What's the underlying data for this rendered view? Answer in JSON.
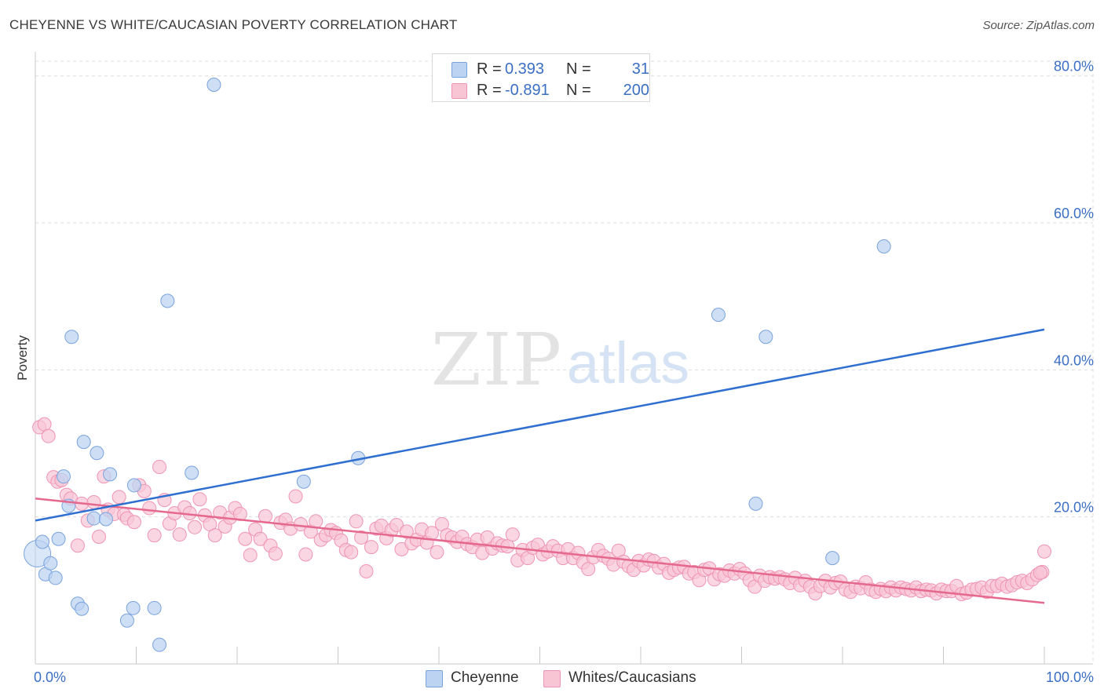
{
  "title": "CHEYENNE VS WHITE/CAUCASIAN POVERTY CORRELATION CHART",
  "source": "Source: ZipAtlas.com",
  "watermark": {
    "zip": "ZIP",
    "atlas": "atlas"
  },
  "legend_stats": [
    {
      "r_label": "R =",
      "r_value": "0.393",
      "n_label": "N =",
      "n_value": "31"
    },
    {
      "r_label": "R =",
      "r_value": "-0.891",
      "n_label": "N =",
      "n_value": "200"
    }
  ],
  "colors": {
    "cheyenne_fill": "#bcd3f2",
    "cheyenne_stroke": "#7aa3dd",
    "cheyenne_line": "#2f6fd0",
    "white_fill": "#f8c5d5",
    "white_stroke": "#ef94b3",
    "white_line": "#e5698f",
    "tick_label": "#3b6fc4",
    "grid": "#dddddd"
  },
  "chart_data": {
    "type": "scatter",
    "title": "CHEYENNE VS WHITE/CAUCASIAN POVERTY CORRELATION CHART",
    "xlabel": "",
    "ylabel": "Poverty",
    "xlim": [
      0,
      100
    ],
    "ylim": [
      0,
      82
    ],
    "x_tick_labels": [
      "0.0%",
      "100.0%"
    ],
    "y_ticks": [
      20,
      40,
      60,
      80
    ],
    "y_tick_labels": [
      "20.0%",
      "40.0%",
      "60.0%",
      "80.0%"
    ],
    "grid": true,
    "legend_position": "bottom",
    "series": [
      {
        "name": "Cheyenne",
        "r": 0.393,
        "n": 31,
        "trend": {
          "x": [
            0,
            100
          ],
          "y": [
            19.5,
            45.5
          ]
        },
        "points": [
          [
            0.2,
            15.0
          ],
          [
            0.7,
            16.6
          ],
          [
            1.0,
            12.2
          ],
          [
            1.5,
            13.7
          ],
          [
            2.0,
            11.7
          ],
          [
            2.3,
            17.0
          ],
          [
            2.8,
            25.5
          ],
          [
            3.3,
            21.5
          ],
          [
            3.6,
            44.5
          ],
          [
            4.2,
            8.2
          ],
          [
            4.6,
            7.5
          ],
          [
            4.8,
            30.2
          ],
          [
            5.8,
            19.8
          ],
          [
            6.1,
            28.7
          ],
          [
            7.0,
            19.7
          ],
          [
            7.4,
            25.8
          ],
          [
            9.1,
            5.9
          ],
          [
            9.7,
            7.6
          ],
          [
            9.8,
            24.3
          ],
          [
            11.8,
            7.6
          ],
          [
            12.3,
            2.6
          ],
          [
            13.1,
            49.4
          ],
          [
            15.5,
            26.0
          ],
          [
            17.7,
            78.8
          ],
          [
            26.6,
            24.8
          ],
          [
            32.0,
            28.0
          ],
          [
            67.7,
            47.5
          ],
          [
            71.4,
            21.8
          ],
          [
            72.4,
            44.5
          ],
          [
            79.0,
            14.4
          ],
          [
            84.1,
            56.8
          ]
        ]
      },
      {
        "name": "Whites/Caucasians",
        "r": -0.891,
        "n": 200,
        "trend": {
          "x": [
            0,
            100
          ],
          "y": [
            22.5,
            8.3
          ]
        },
        "points": [
          [
            0.4,
            32.2
          ],
          [
            0.9,
            32.6
          ],
          [
            1.3,
            31.0
          ],
          [
            1.8,
            25.4
          ],
          [
            2.2,
            24.8
          ],
          [
            2.6,
            25.0
          ],
          [
            3.1,
            23.0
          ],
          [
            3.5,
            22.5
          ],
          [
            4.2,
            16.1
          ],
          [
            4.6,
            21.8
          ],
          [
            5.2,
            19.5
          ],
          [
            5.8,
            22.0
          ],
          [
            6.3,
            17.3
          ],
          [
            6.8,
            25.5
          ],
          [
            7.2,
            21.0
          ],
          [
            7.8,
            20.4
          ],
          [
            8.3,
            22.7
          ],
          [
            8.8,
            20.3
          ],
          [
            9.1,
            19.8
          ],
          [
            9.8,
            19.3
          ],
          [
            10.3,
            24.3
          ],
          [
            10.8,
            23.5
          ],
          [
            11.3,
            21.2
          ],
          [
            11.8,
            17.5
          ],
          [
            12.3,
            26.8
          ],
          [
            12.8,
            22.3
          ],
          [
            13.3,
            19.1
          ],
          [
            13.8,
            20.5
          ],
          [
            14.3,
            17.6
          ],
          [
            14.8,
            21.3
          ],
          [
            15.3,
            20.5
          ],
          [
            15.8,
            18.6
          ],
          [
            16.3,
            22.4
          ],
          [
            16.8,
            20.2
          ],
          [
            17.3,
            19.0
          ],
          [
            17.8,
            17.5
          ],
          [
            18.3,
            20.6
          ],
          [
            18.8,
            18.7
          ],
          [
            19.3,
            19.9
          ],
          [
            19.8,
            21.2
          ],
          [
            20.3,
            20.4
          ],
          [
            20.8,
            17.0
          ],
          [
            21.3,
            14.8
          ],
          [
            21.8,
            18.3
          ],
          [
            22.3,
            17.0
          ],
          [
            22.8,
            20.1
          ],
          [
            23.3,
            16.1
          ],
          [
            23.8,
            15.0
          ],
          [
            24.3,
            19.2
          ],
          [
            24.8,
            19.6
          ],
          [
            25.3,
            18.4
          ],
          [
            25.8,
            22.8
          ],
          [
            26.3,
            19.0
          ],
          [
            26.8,
            14.9
          ],
          [
            27.3,
            18.0
          ],
          [
            27.8,
            19.4
          ],
          [
            28.3,
            16.9
          ],
          [
            28.8,
            17.5
          ],
          [
            29.3,
            18.2
          ],
          [
            29.8,
            17.8
          ],
          [
            30.3,
            16.8
          ],
          [
            30.8,
            15.5
          ],
          [
            31.3,
            15.2
          ],
          [
            31.8,
            19.4
          ],
          [
            32.3,
            17.2
          ],
          [
            32.8,
            12.6
          ],
          [
            33.3,
            15.9
          ],
          [
            33.8,
            18.4
          ],
          [
            34.3,
            18.8
          ],
          [
            34.8,
            17.1
          ],
          [
            35.3,
            18.2
          ],
          [
            35.8,
            18.9
          ],
          [
            36.3,
            15.6
          ],
          [
            36.8,
            18.0
          ],
          [
            37.3,
            16.4
          ],
          [
            37.8,
            16.9
          ],
          [
            38.3,
            18.3
          ],
          [
            38.8,
            16.5
          ],
          [
            39.3,
            17.8
          ],
          [
            39.8,
            15.2
          ],
          [
            40.3,
            19.0
          ],
          [
            40.8,
            17.5
          ],
          [
            41.3,
            17.2
          ],
          [
            41.8,
            16.6
          ],
          [
            42.3,
            17.3
          ],
          [
            42.8,
            16.3
          ],
          [
            43.3,
            15.9
          ],
          [
            43.8,
            16.9
          ],
          [
            44.3,
            15.1
          ],
          [
            44.8,
            17.2
          ],
          [
            45.3,
            15.7
          ],
          [
            45.8,
            16.4
          ],
          [
            46.3,
            16.1
          ],
          [
            46.8,
            16.0
          ],
          [
            47.3,
            17.6
          ],
          [
            47.8,
            14.1
          ],
          [
            48.3,
            15.5
          ],
          [
            48.8,
            14.4
          ],
          [
            49.3,
            15.8
          ],
          [
            49.8,
            16.2
          ],
          [
            50.3,
            14.9
          ],
          [
            50.8,
            15.3
          ],
          [
            51.3,
            16.0
          ],
          [
            51.8,
            15.4
          ],
          [
            52.3,
            14.4
          ],
          [
            52.8,
            15.6
          ],
          [
            53.3,
            14.4
          ],
          [
            53.8,
            15.1
          ],
          [
            54.3,
            13.8
          ],
          [
            54.8,
            12.9
          ],
          [
            55.3,
            14.5
          ],
          [
            55.8,
            15.5
          ],
          [
            56.3,
            14.7
          ],
          [
            56.8,
            14.3
          ],
          [
            57.3,
            13.5
          ],
          [
            57.8,
            15.4
          ],
          [
            58.3,
            13.9
          ],
          [
            58.8,
            13.3
          ],
          [
            59.3,
            12.8
          ],
          [
            59.8,
            14.0
          ],
          [
            60.3,
            13.4
          ],
          [
            60.8,
            14.2
          ],
          [
            61.3,
            14.0
          ],
          [
            61.8,
            13.1
          ],
          [
            62.3,
            13.6
          ],
          [
            62.8,
            12.4
          ],
          [
            63.3,
            12.8
          ],
          [
            63.8,
            13.1
          ],
          [
            64.3,
            13.2
          ],
          [
            64.8,
            12.3
          ],
          [
            65.3,
            12.5
          ],
          [
            65.8,
            11.4
          ],
          [
            66.3,
            12.8
          ],
          [
            66.8,
            13.0
          ],
          [
            67.3,
            11.5
          ],
          [
            67.8,
            12.2
          ],
          [
            68.3,
            12.0
          ],
          [
            68.8,
            12.7
          ],
          [
            69.3,
            12.3
          ],
          [
            69.8,
            12.9
          ],
          [
            70.3,
            12.3
          ],
          [
            70.8,
            11.4
          ],
          [
            71.3,
            10.5
          ],
          [
            71.8,
            12.0
          ],
          [
            72.3,
            11.3
          ],
          [
            72.8,
            11.8
          ],
          [
            73.3,
            11.6
          ],
          [
            73.8,
            11.8
          ],
          [
            74.3,
            11.5
          ],
          [
            74.8,
            11.0
          ],
          [
            75.3,
            11.7
          ],
          [
            75.8,
            10.7
          ],
          [
            76.3,
            11.3
          ],
          [
            76.8,
            10.5
          ],
          [
            77.3,
            9.6
          ],
          [
            77.8,
            10.6
          ],
          [
            78.3,
            11.3
          ],
          [
            78.8,
            10.4
          ],
          [
            79.3,
            11.0
          ],
          [
            79.8,
            11.2
          ],
          [
            80.3,
            10.1
          ],
          [
            80.8,
            9.8
          ],
          [
            81.3,
            10.5
          ],
          [
            81.8,
            10.3
          ],
          [
            82.3,
            11.1
          ],
          [
            82.8,
            10.1
          ],
          [
            83.3,
            9.8
          ],
          [
            83.8,
            10.2
          ],
          [
            84.3,
            9.9
          ],
          [
            84.8,
            10.4
          ],
          [
            85.3,
            10.0
          ],
          [
            85.8,
            10.4
          ],
          [
            86.3,
            10.2
          ],
          [
            86.8,
            10.0
          ],
          [
            87.3,
            10.4
          ],
          [
            87.8,
            9.9
          ],
          [
            88.3,
            10.1
          ],
          [
            88.8,
            10.0
          ],
          [
            89.3,
            9.6
          ],
          [
            89.8,
            10.1
          ],
          [
            90.3,
            9.9
          ],
          [
            90.8,
            9.9
          ],
          [
            91.3,
            10.6
          ],
          [
            91.8,
            9.5
          ],
          [
            92.3,
            9.7
          ],
          [
            92.8,
            10.1
          ],
          [
            93.3,
            10.2
          ],
          [
            93.8,
            10.4
          ],
          [
            94.3,
            9.8
          ],
          [
            94.8,
            10.6
          ],
          [
            95.3,
            10.6
          ],
          [
            95.8,
            10.9
          ],
          [
            96.3,
            10.5
          ],
          [
            96.8,
            10.7
          ],
          [
            97.3,
            11.1
          ],
          [
            97.8,
            11.3
          ],
          [
            98.3,
            11.0
          ],
          [
            98.8,
            11.5
          ],
          [
            99.3,
            12.1
          ],
          [
            99.8,
            12.5
          ],
          [
            100.0,
            15.3
          ],
          [
            99.6,
            12.4
          ]
        ]
      }
    ]
  }
}
